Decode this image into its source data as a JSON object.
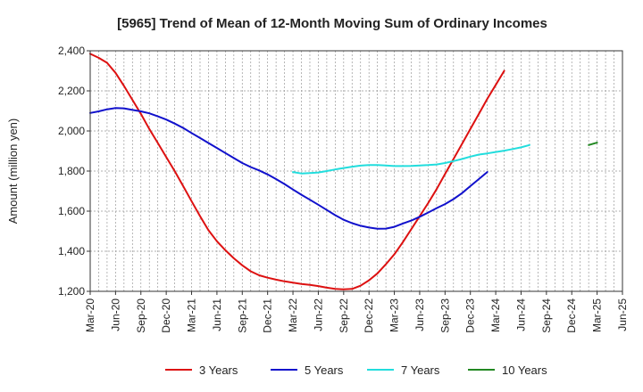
{
  "chart_data": {
    "type": "line",
    "title": "[5965]  Trend of Mean of 12-Month Moving Sum of Ordinary Incomes",
    "xlabel": "",
    "ylabel": "Amount (million yen)",
    "ylim": [
      1200,
      2400
    ],
    "yticks": [
      1200,
      1400,
      1600,
      1800,
      2000,
      2200,
      2400
    ],
    "ytick_labels": [
      "1,200",
      "1,400",
      "1,600",
      "1,800",
      "2,000",
      "2,200",
      "2,400"
    ],
    "x_start": "Mar-20",
    "x_end": "Jun-25",
    "x_tick_labels": [
      "Mar-20",
      "Jun-20",
      "Sep-20",
      "Dec-20",
      "Mar-21",
      "Jun-21",
      "Sep-21",
      "Dec-21",
      "Mar-22",
      "Jun-22",
      "Sep-22",
      "Dec-22",
      "Mar-23",
      "Jun-23",
      "Sep-23",
      "Dec-23",
      "Mar-24",
      "Jun-24",
      "Sep-24",
      "Dec-24",
      "Mar-25",
      "Jun-25"
    ],
    "grid": true,
    "legend_position": "bottom",
    "series": [
      {
        "name": "3 Years",
        "color": "#dd1111",
        "start_month_index": 0,
        "values": [
          2385,
          2365,
          2340,
          2290,
          2225,
          2155,
          2085,
          2010,
          1940,
          1870,
          1800,
          1725,
          1650,
          1575,
          1505,
          1450,
          1405,
          1365,
          1330,
          1300,
          1280,
          1268,
          1258,
          1250,
          1243,
          1237,
          1232,
          1226,
          1218,
          1212,
          1210,
          1212,
          1228,
          1255,
          1290,
          1335,
          1385,
          1445,
          1510,
          1575,
          1640,
          1710,
          1785,
          1860,
          1935,
          2010,
          2085,
          2160,
          2230,
          2300
        ]
      },
      {
        "name": "5 Years",
        "color": "#1111cc",
        "start_month_index": 0,
        "values": [
          2090,
          2098,
          2108,
          2114,
          2113,
          2105,
          2098,
          2088,
          2073,
          2057,
          2037,
          2015,
          1990,
          1965,
          1940,
          1915,
          1890,
          1865,
          1840,
          1820,
          1803,
          1783,
          1760,
          1735,
          1708,
          1682,
          1657,
          1632,
          1606,
          1580,
          1557,
          1540,
          1527,
          1518,
          1512,
          1513,
          1522,
          1538,
          1553,
          1572,
          1593,
          1615,
          1635,
          1660,
          1690,
          1725,
          1760,
          1795
        ]
      },
      {
        "name": "7 Years",
        "color": "#22dddd",
        "start_month_index": 24,
        "values": [
          1795,
          1788,
          1790,
          1793,
          1800,
          1808,
          1815,
          1822,
          1827,
          1830,
          1830,
          1828,
          1825,
          1825,
          1826,
          1828,
          1830,
          1833,
          1840,
          1850,
          1860,
          1872,
          1882,
          1888,
          1895,
          1902,
          1910,
          1918,
          1930
        ]
      },
      {
        "name": "10 Years",
        "color": "#228822",
        "start_month_index": 59,
        "values": [
          1930,
          1942
        ]
      }
    ]
  }
}
